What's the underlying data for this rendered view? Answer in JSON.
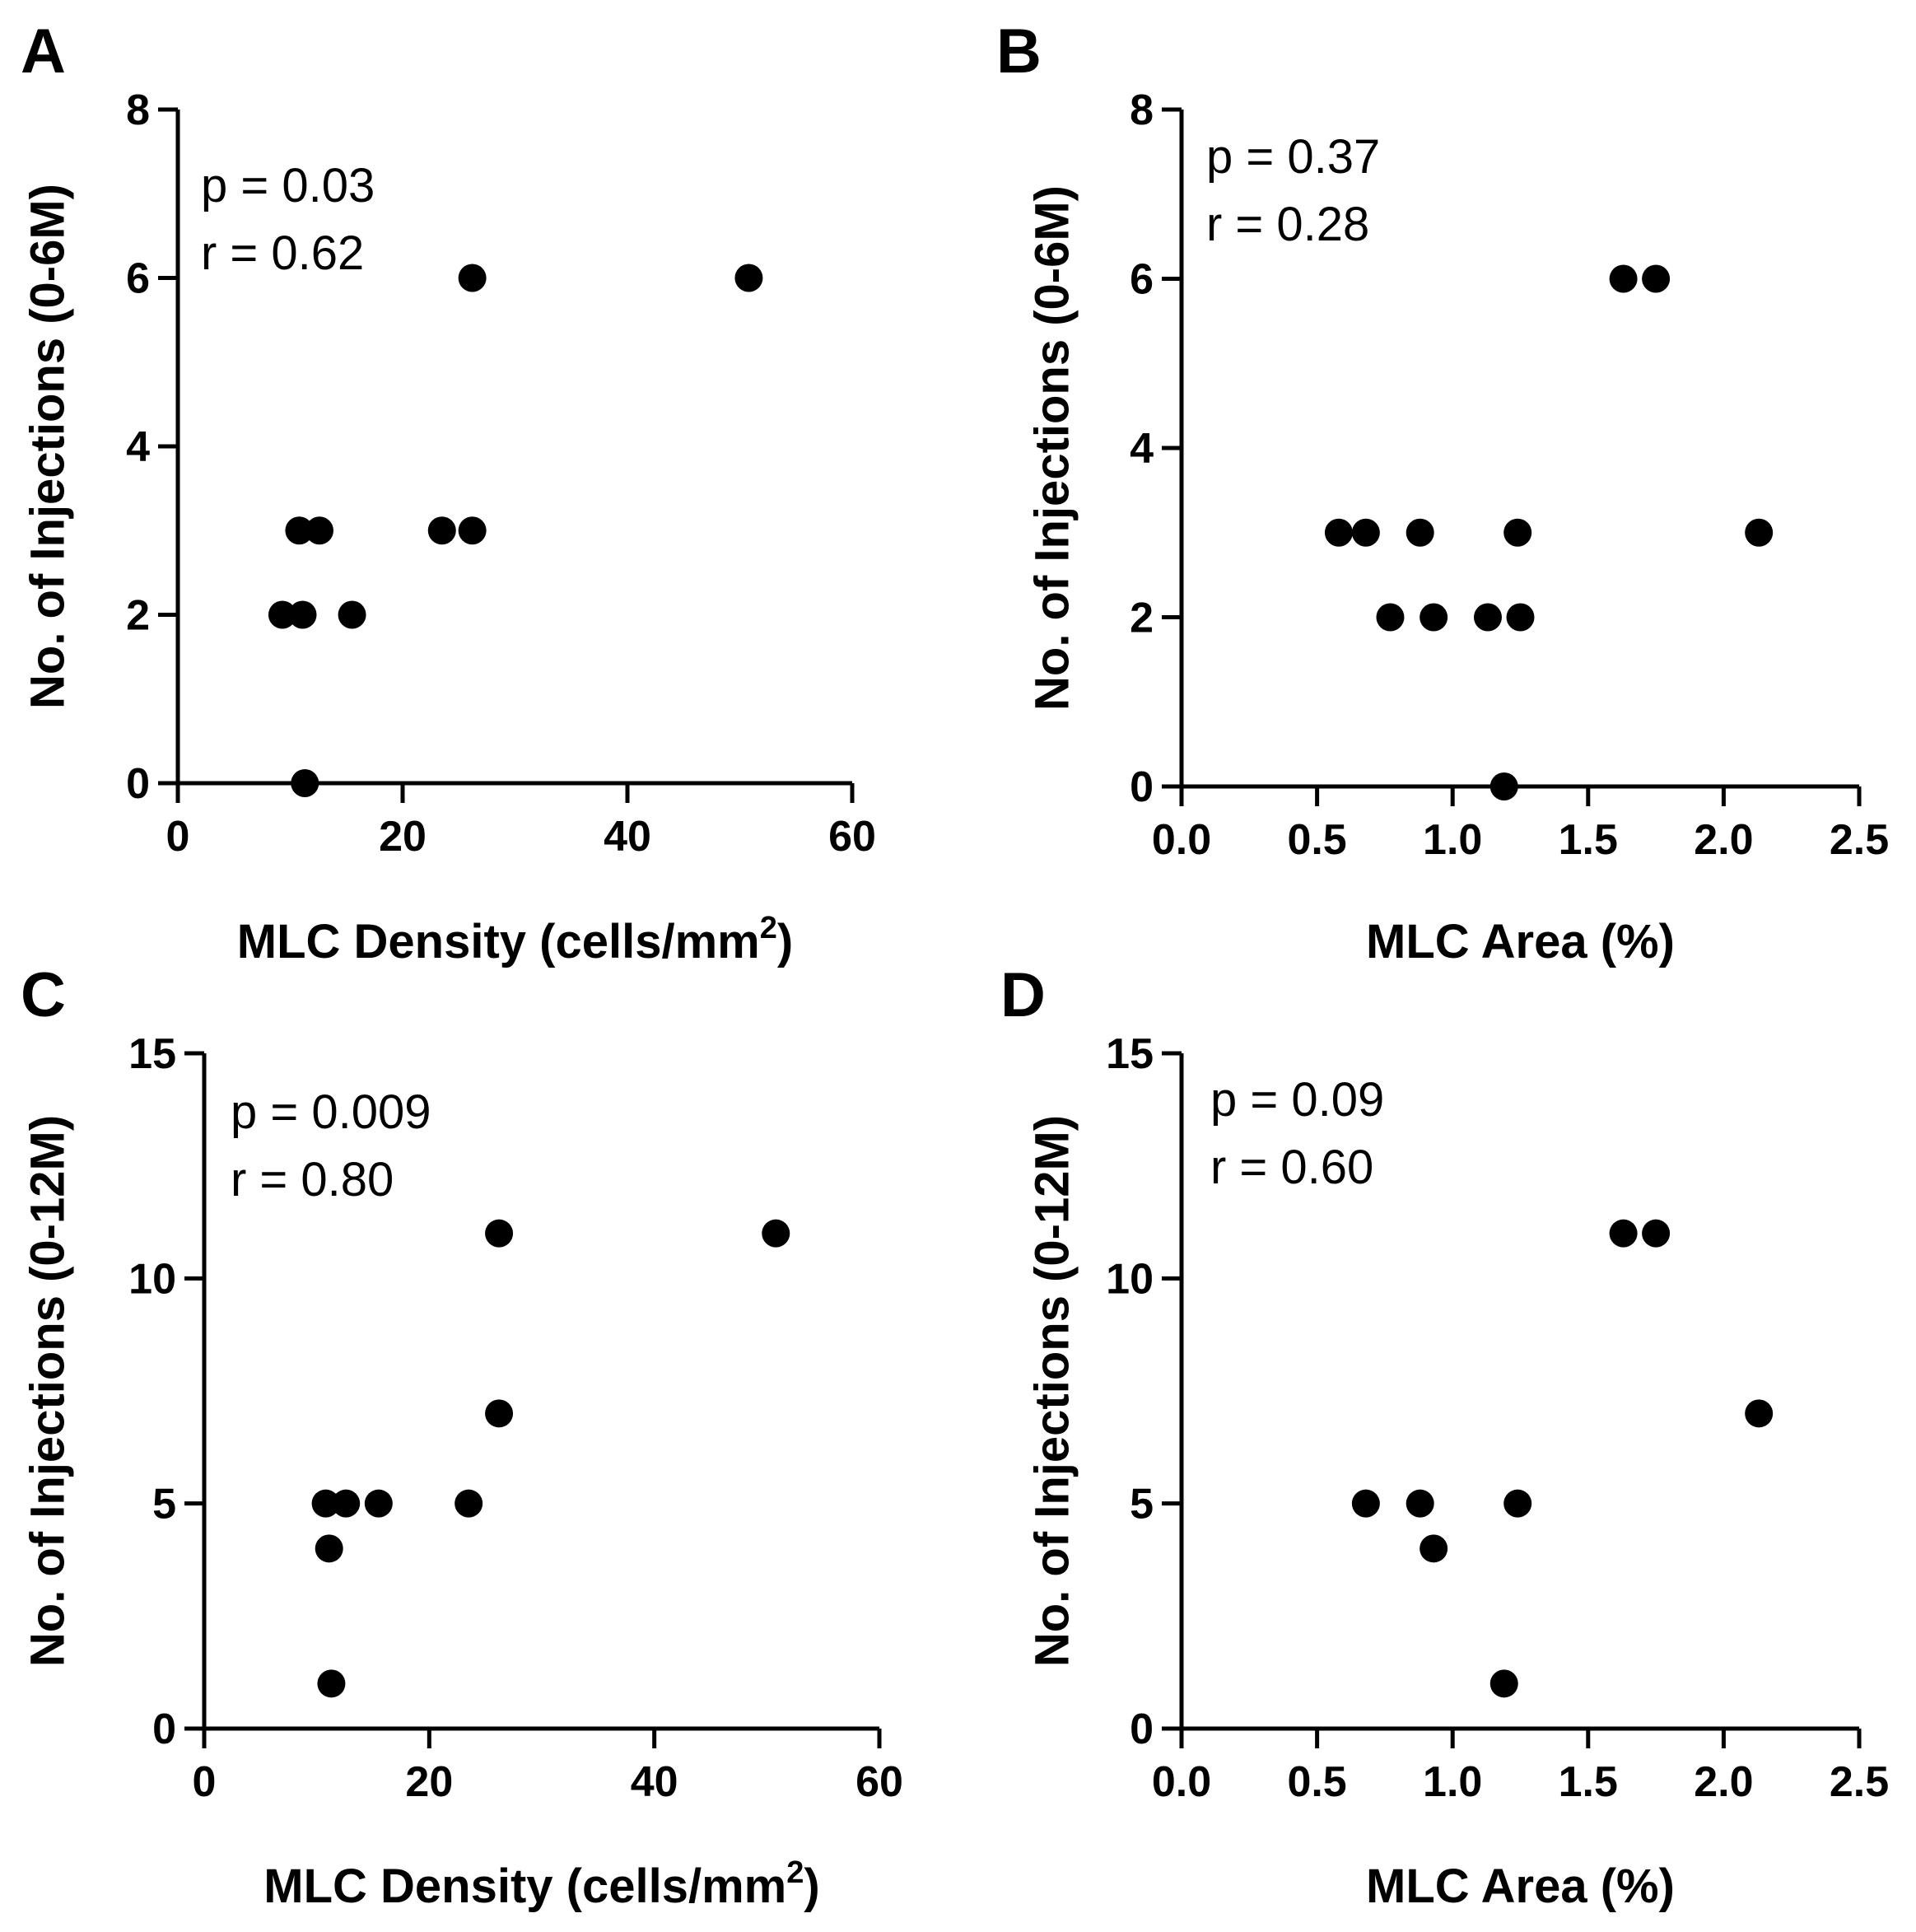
{
  "chart_data": [
    {
      "panel": "A",
      "type": "scatter",
      "xlabel": "MLC Density (cells/mm",
      "xlabel_sup": "2",
      "xlabel_end": ")",
      "ylabel": "No. of Injections (0-6M)",
      "xlim": [
        0,
        60
      ],
      "ylim": [
        0,
        8
      ],
      "xticks": [
        0,
        20,
        40,
        60
      ],
      "yticks": [
        0,
        2,
        4,
        6,
        8
      ],
      "xtick_labels": [
        "0",
        "20",
        "40",
        "60"
      ],
      "ytick_labels": [
        "0",
        "2",
        "4",
        "6",
        "8"
      ],
      "stats": [
        "p = 0.03",
        "r = 0.62"
      ],
      "points": [
        {
          "x": 26.2,
          "y": 6
        },
        {
          "x": 50.8,
          "y": 6
        },
        {
          "x": 10.8,
          "y": 3
        },
        {
          "x": 12.6,
          "y": 3
        },
        {
          "x": 23.5,
          "y": 3
        },
        {
          "x": 26.2,
          "y": 3
        },
        {
          "x": 9.3,
          "y": 2
        },
        {
          "x": 11.1,
          "y": 2
        },
        {
          "x": 15.5,
          "y": 2
        },
        {
          "x": 11.3,
          "y": 0
        }
      ]
    },
    {
      "panel": "B",
      "type": "scatter",
      "xlabel": "MLC Area (%)",
      "xlabel_sup": "",
      "xlabel_end": "",
      "ylabel": "No. of Injections (0-6M)",
      "xlim": [
        0,
        2.5
      ],
      "ylim": [
        0,
        8
      ],
      "xticks": [
        0,
        0.5,
        1.0,
        1.5,
        2.0,
        2.5
      ],
      "yticks": [
        0,
        2,
        4,
        6,
        8
      ],
      "xtick_labels": [
        "0.0",
        "0.5",
        "1.0",
        "1.5",
        "2.0",
        "2.5"
      ],
      "ytick_labels": [
        "0",
        "2",
        "4",
        "6",
        "8"
      ],
      "stats": [
        "p = 0.37",
        "r = 0.28"
      ],
      "points": [
        {
          "x": 1.63,
          "y": 6
        },
        {
          "x": 1.75,
          "y": 6
        },
        {
          "x": 0.58,
          "y": 3
        },
        {
          "x": 0.68,
          "y": 3
        },
        {
          "x": 0.88,
          "y": 3
        },
        {
          "x": 1.24,
          "y": 3
        },
        {
          "x": 2.13,
          "y": 3
        },
        {
          "x": 0.77,
          "y": 2
        },
        {
          "x": 0.93,
          "y": 2
        },
        {
          "x": 1.13,
          "y": 2
        },
        {
          "x": 1.25,
          "y": 2
        },
        {
          "x": 1.19,
          "y": 0
        }
      ]
    },
    {
      "panel": "C",
      "type": "scatter",
      "xlabel": "MLC Density (cells/mm",
      "xlabel_sup": "2",
      "xlabel_end": ")",
      "ylabel": "No. of Injections (0-12M)",
      "xlim": [
        0,
        60
      ],
      "ylim": [
        0,
        15
      ],
      "xticks": [
        0,
        20,
        40,
        60
      ],
      "yticks": [
        0,
        5,
        10,
        15
      ],
      "xtick_labels": [
        "0",
        "20",
        "40",
        "60"
      ],
      "ytick_labels": [
        "0",
        "5",
        "10",
        "15"
      ],
      "stats": [
        "p = 0.009",
        "r = 0.80"
      ],
      "points": [
        {
          "x": 26.2,
          "y": 11
        },
        {
          "x": 50.8,
          "y": 11
        },
        {
          "x": 26.2,
          "y": 7
        },
        {
          "x": 10.8,
          "y": 5
        },
        {
          "x": 12.6,
          "y": 5
        },
        {
          "x": 15.5,
          "y": 5
        },
        {
          "x": 23.5,
          "y": 5
        },
        {
          "x": 11.1,
          "y": 4
        },
        {
          "x": 11.3,
          "y": 1
        }
      ]
    },
    {
      "panel": "D",
      "type": "scatter",
      "xlabel": "MLC Area (%)",
      "xlabel_sup": "",
      "xlabel_end": "",
      "ylabel": "No. of Injections (0-12M)",
      "xlim": [
        0,
        2.5
      ],
      "ylim": [
        0,
        15
      ],
      "xticks": [
        0,
        0.5,
        1.0,
        1.5,
        2.0,
        2.5
      ],
      "yticks": [
        0,
        5,
        10,
        15
      ],
      "xtick_labels": [
        "0.0",
        "0.5",
        "1.0",
        "1.5",
        "2.0",
        "2.5"
      ],
      "ytick_labels": [
        "0",
        "5",
        "10",
        "15"
      ],
      "stats": [
        "p = 0.09",
        "r = 0.60"
      ],
      "points": [
        {
          "x": 1.63,
          "y": 11
        },
        {
          "x": 1.75,
          "y": 11
        },
        {
          "x": 2.13,
          "y": 7
        },
        {
          "x": 0.68,
          "y": 5
        },
        {
          "x": 0.88,
          "y": 5
        },
        {
          "x": 1.24,
          "y": 5
        },
        {
          "x": 0.93,
          "y": 4
        },
        {
          "x": 1.19,
          "y": 1
        }
      ]
    }
  ]
}
